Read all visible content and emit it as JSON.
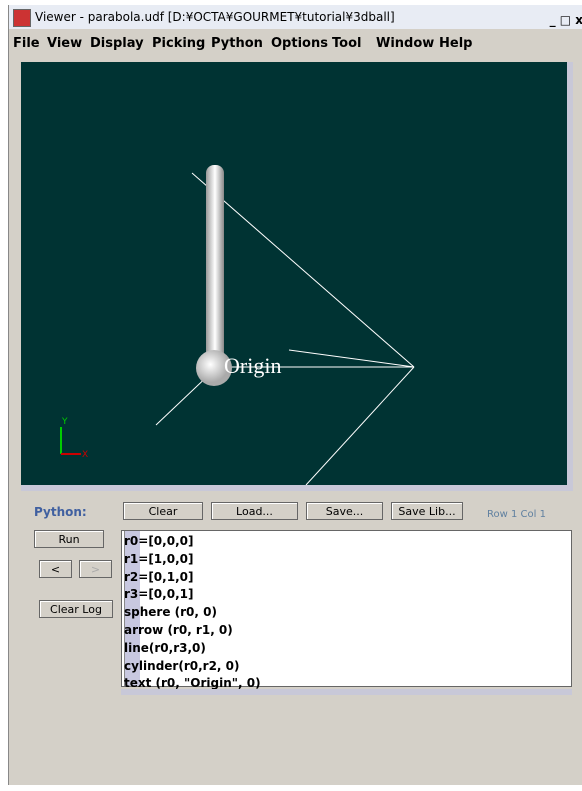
{
  "window": {
    "title": "Viewer - parabola.udf [D:¥OCTA¥GOURMET¥tutorial¥3dball]"
  },
  "menu": [
    "File",
    "View",
    "Display",
    "Picking",
    "Python",
    "Options",
    "Tool",
    "Window",
    "Help"
  ],
  "viewport": {
    "label": "Origin",
    "axis_y": "Y",
    "axis_x": "X"
  },
  "python_panel": {
    "label": "Python:",
    "buttons": [
      "Clear",
      "Load...",
      "Save...",
      "Save Lib..."
    ],
    "status": "Row 1 Col 1",
    "side_buttons": [
      "Run",
      "<",
      ">",
      "Clear Log"
    ],
    "code": [
      "r0=[0,0,0]",
      "r1=[1,0,0]",
      "r2=[0,1,0]",
      "r3=[0,0,1]",
      "sphere (r0, 0)",
      "arrow (r0, r1, 0)",
      "line(r0,r3,0)",
      "cylinder(r0,r2, 0)",
      "text (r0, \"Origin\", 0)"
    ]
  }
}
